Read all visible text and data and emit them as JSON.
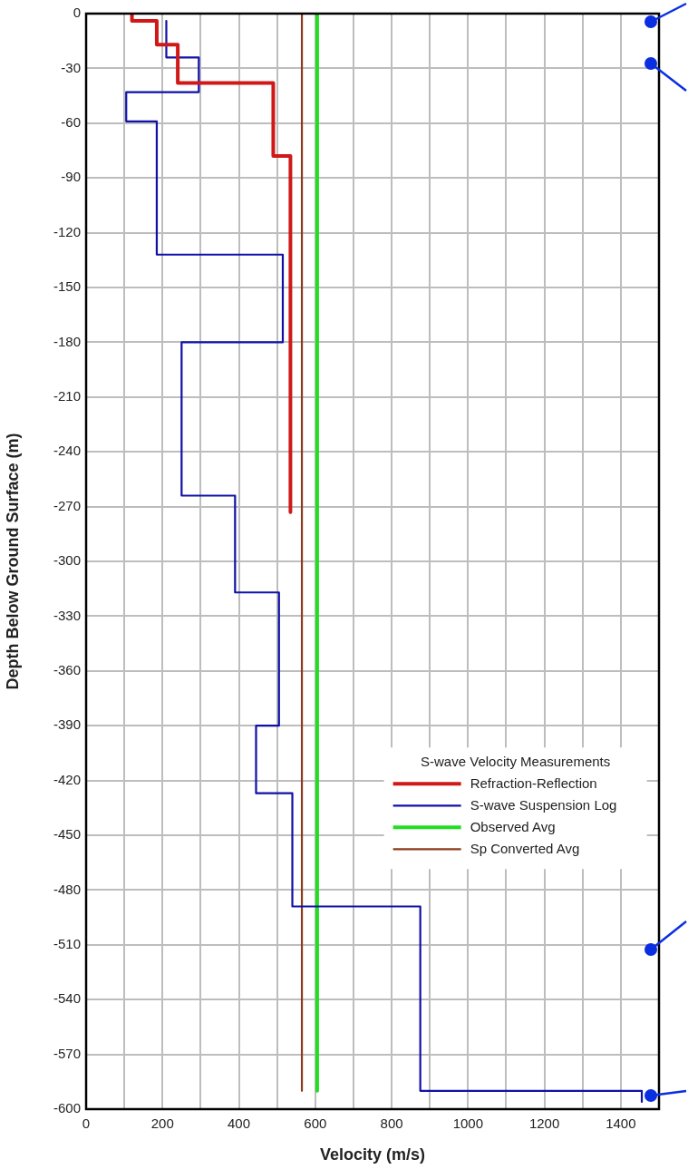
{
  "chart_data": {
    "type": "line",
    "xlabel": "Velocity (m/s)",
    "ylabel": "Depth Below Ground Surface (m)",
    "legend_title": "S-wave Velocity Measurements",
    "xlim": [
      0,
      1500
    ],
    "xticks": [
      0,
      {
        "value": 100,
        "label": null
      },
      200,
      {
        "value": 300,
        "label": null
      },
      400,
      {
        "value": 500,
        "label": null
      },
      600,
      {
        "value": 700,
        "label": null
      },
      800,
      {
        "value": 900,
        "label": null
      },
      1000,
      {
        "value": 1100,
        "label": null
      },
      1200,
      {
        "value": 1300,
        "label": null
      },
      1400,
      {
        "value": 1500,
        "label": null
      }
    ],
    "ylim": [
      -600,
      0
    ],
    "yticks": [
      -600,
      -570,
      -540,
      -510,
      -480,
      -450,
      -420,
      -390,
      -360,
      -330,
      -300,
      -270,
      -240,
      -210,
      -180,
      -150,
      -120,
      -90,
      -60,
      -30,
      0
    ],
    "grid": true,
    "legend": "right",
    "marker": "none",
    "line_style": "solid",
    "series": [
      {
        "name": "Refraction-Reflection",
        "color": "#d01818",
        "x": [
          120,
          120,
          185,
          185,
          240,
          240,
          490,
          490,
          535,
          535
        ],
        "values": [
          0,
          -4,
          -4,
          -17,
          -17,
          -38,
          -38,
          -78,
          -78,
          -273
        ]
      },
      {
        "name": "S-wave Suspension Log",
        "color": "#1010a8",
        "x": [
          210,
          210,
          295,
          295,
          105,
          105,
          185,
          185,
          515,
          515,
          250,
          250,
          390,
          390,
          505,
          505,
          445,
          445,
          540,
          540,
          875,
          875,
          1455,
          1455
        ],
        "values": [
          -4,
          -24,
          -24,
          -43,
          -43,
          -59,
          -59,
          -132,
          -132,
          -180,
          -180,
          -264,
          -264,
          -317,
          -317,
          -390,
          -390,
          -427,
          -427,
          -489,
          -489,
          -590,
          -590,
          -596
        ]
      },
      {
        "name": "Observed Avg",
        "color": "#22dd22",
        "x": [
          605,
          605
        ],
        "values": [
          0,
          -590
        ]
      },
      {
        "name": "Sp Converted Avg",
        "color": "#8b3a1a",
        "x": [
          565,
          565
        ],
        "values": [
          0,
          -590
        ]
      }
    ]
  }
}
